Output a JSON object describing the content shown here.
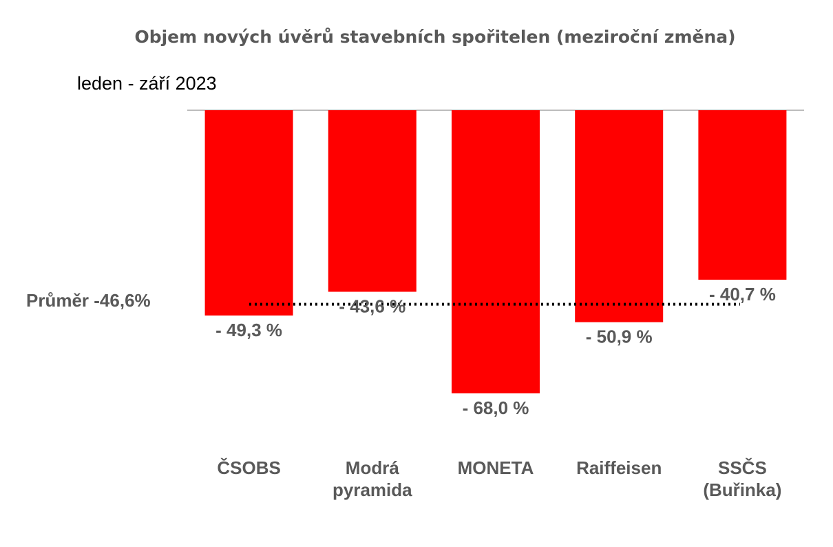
{
  "chart_data": {
    "type": "bar",
    "title": "Objem nových úvěrů stavebních spořitelen (meziroční změna)",
    "subtitle": "leden - září 2023",
    "categories": [
      [
        "ČSOBS"
      ],
      [
        "Modrá",
        "pyramida"
      ],
      [
        "MONETA"
      ],
      [
        "Raiffeisen"
      ],
      [
        "SSČS",
        "(Buřinka)"
      ]
    ],
    "values": [
      -49.3,
      -43.6,
      -68.0,
      -50.9,
      -40.7
    ],
    "value_labels": [
      "- 49,3 %",
      "- 43,6 %",
      "- 68,0 %",
      "- 50,9 %",
      "- 40,7 %"
    ],
    "average": {
      "value": -46.6,
      "label": "Průměr -46,6%"
    },
    "ylim": [
      -68.0,
      0
    ],
    "grid": false,
    "legend": "none",
    "colors": {
      "bar": "#ff0000",
      "axis": "#a6a6a6",
      "text": "#595959",
      "average_line": "#000000"
    }
  }
}
